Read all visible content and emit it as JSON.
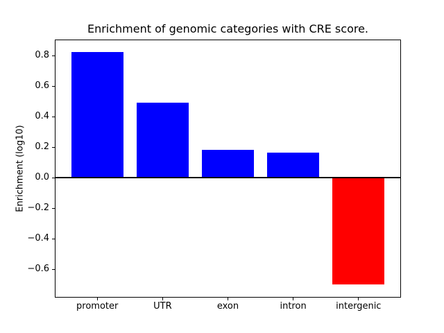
{
  "chart_data": {
    "type": "bar",
    "title": "Enrichment of genomic categories with CRE score.",
    "xlabel": "",
    "ylabel": "Enrichment (log10)",
    "categories": [
      "promoter",
      "UTR",
      "exon",
      "intron",
      "intergenic"
    ],
    "values": [
      0.825,
      0.49,
      0.185,
      0.165,
      -0.7
    ],
    "bar_colors": [
      "#0000ff",
      "#0000ff",
      "#0000ff",
      "#0000ff",
      "#ff0000"
    ],
    "positive_color": "#0000ff",
    "negative_color": "#ff0000",
    "bar_width": 0.8,
    "ylim": [
      -0.78,
      0.9
    ],
    "yticks": [
      0.8,
      0.6,
      0.4,
      0.2,
      0.0,
      -0.2,
      -0.4,
      -0.6
    ],
    "ytick_labels": [
      "0.8",
      "0.6",
      "0.4",
      "0.2",
      "0.0",
      "−0.2",
      "−0.4",
      "−0.6"
    ],
    "zero_line": true,
    "grid": false,
    "legend": false,
    "axis_color": "#000000",
    "background_color": "#ffffff"
  }
}
